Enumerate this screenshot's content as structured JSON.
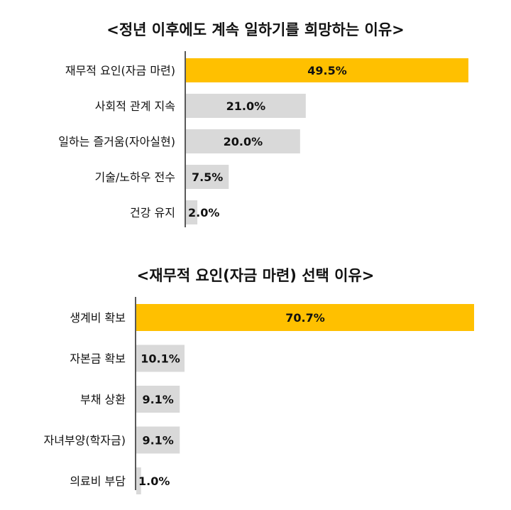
{
  "chart_data": [
    {
      "type": "bar",
      "orientation": "horizontal",
      "title": "<정년 이후에도 계속 일하기를 희망하는 이유>",
      "categories": [
        "재무적 요인(자금 마련)",
        "사회적 관계 지속",
        "일하는 즐거움(자아실현)",
        "기술/노하우 전수",
        "건강 유지"
      ],
      "values": [
        49.5,
        21.0,
        20.0,
        7.5,
        2.0
      ],
      "value_labels": [
        "49.5%",
        "21.0%",
        "20.0%",
        "7.5%",
        "2.0%"
      ],
      "unit": "%",
      "xlim": [
        0,
        50
      ],
      "grid": false,
      "highlight_color": "#FFC000",
      "bar_color": "#D9D9D9"
    },
    {
      "type": "bar",
      "orientation": "horizontal",
      "title": "<재무적 요인(자금 마련) 선택 이유>",
      "categories": [
        "생계비 확보",
        "자본금 확보",
        "부채 상환",
        "자녀부양(학자금)",
        "의료비 부담"
      ],
      "values": [
        70.7,
        10.1,
        9.1,
        9.1,
        1.0
      ],
      "value_labels": [
        "70.7%",
        "10.1%",
        "9.1%",
        "9.1%",
        "1.0%"
      ],
      "unit": "%",
      "xlim": [
        0,
        71
      ],
      "grid": false,
      "highlight_color": "#FFC000",
      "bar_color": "#D9D9D9"
    }
  ]
}
